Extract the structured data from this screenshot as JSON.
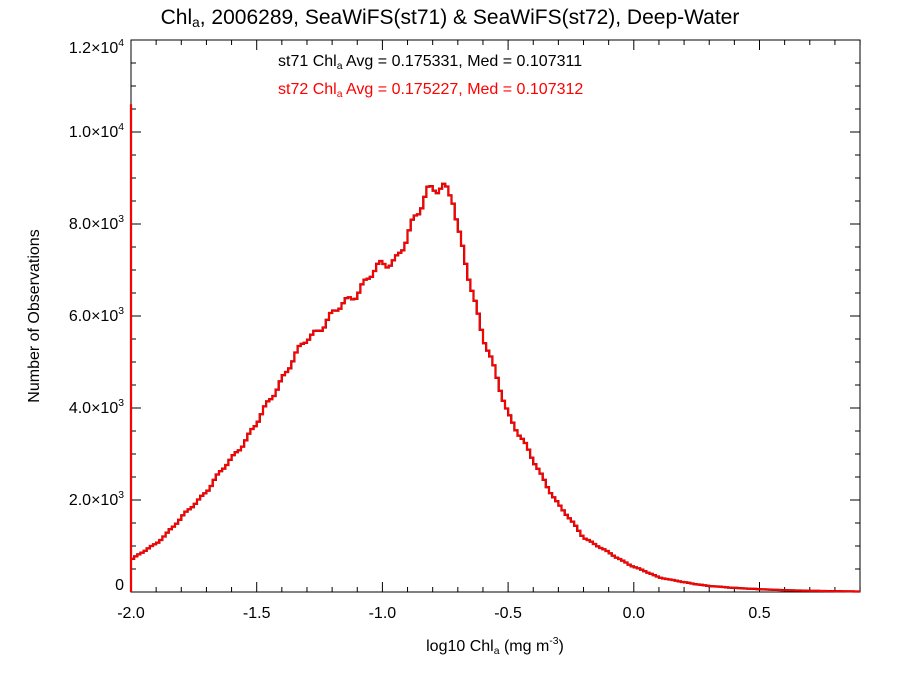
{
  "chart_data": {
    "type": "histogram",
    "title": {
      "prefix": "Chl",
      "prefix_sub": "a",
      "rest": ", 2006289, SeaWiFS(st71) & SeaWiFS(st72), Deep-Water"
    },
    "xlabel": {
      "pre": "log10 Chl",
      "sub": "a",
      "mid": " (mg m",
      "sup": "-3",
      "post": ")"
    },
    "ylabel": "Number of Observations",
    "xlim": [
      -2.0,
      0.9
    ],
    "ylim": [
      0,
      12000
    ],
    "x_ticks": [
      {
        "value": -2.0,
        "label": "-2.0"
      },
      {
        "value": -1.5,
        "label": "-1.5"
      },
      {
        "value": -1.0,
        "label": "-1.0"
      },
      {
        "value": -0.5,
        "label": "-0.5"
      },
      {
        "value": 0.0,
        "label": "0.0"
      },
      {
        "value": 0.5,
        "label": "0.5"
      }
    ],
    "y_ticks": [
      {
        "value": 0,
        "mant": "0",
        "exp": ""
      },
      {
        "value": 2000,
        "mant": "2.0×10",
        "exp": "3"
      },
      {
        "value": 4000,
        "mant": "4.0×10",
        "exp": "3"
      },
      {
        "value": 6000,
        "mant": "6.0×10",
        "exp": "3"
      },
      {
        "value": 8000,
        "mant": "8.0×10",
        "exp": "3"
      },
      {
        "value": 10000,
        "mant": "1.0×10",
        "exp": "4"
      },
      {
        "value": 12000,
        "mant": "1.2×10",
        "exp": "4"
      }
    ],
    "annotations": [
      {
        "pre": "st71 Chl",
        "sub": "a",
        "post": " Avg = 0.175331, Med = 0.107311",
        "color": "#000000"
      },
      {
        "pre": "st72 Chl",
        "sub": "a",
        "post": " Avg = 0.175227, Med = 0.107312",
        "color": "#ff0000"
      }
    ],
    "series": [
      {
        "name": "st71",
        "color": "#000000",
        "x": [
          -2.0,
          -1.9,
          -1.8,
          -1.7,
          -1.6,
          -1.5,
          -1.4,
          -1.3,
          -1.2,
          -1.1,
          -1.05,
          -1.0,
          -0.95,
          -0.9,
          -0.85,
          -0.82,
          -0.8,
          -0.75,
          -0.72,
          -0.7,
          -0.65,
          -0.6,
          -0.5,
          -0.4,
          -0.3,
          -0.2,
          -0.1,
          0.0,
          0.1,
          0.2,
          0.3,
          0.4,
          0.5,
          0.6,
          0.7,
          0.8,
          0.9
        ],
        "y": [
          700,
          1050,
          1600,
          2200,
          2900,
          3650,
          4650,
          5500,
          6000,
          6550,
          6850,
          7100,
          7250,
          7700,
          8300,
          8750,
          8900,
          8750,
          8500,
          7850,
          6800,
          5550,
          3900,
          2850,
          1900,
          1200,
          850,
          550,
          320,
          210,
          130,
          90,
          60,
          40,
          25,
          18,
          10
        ]
      },
      {
        "name": "st72",
        "color": "#ff0000",
        "x": [
          -2.0,
          -1.9,
          -1.8,
          -1.7,
          -1.6,
          -1.5,
          -1.4,
          -1.3,
          -1.2,
          -1.1,
          -1.05,
          -1.0,
          -0.95,
          -0.9,
          -0.85,
          -0.82,
          -0.8,
          -0.75,
          -0.72,
          -0.7,
          -0.65,
          -0.6,
          -0.5,
          -0.4,
          -0.3,
          -0.2,
          -0.1,
          0.0,
          0.1,
          0.2,
          0.3,
          0.4,
          0.5,
          0.6,
          0.7,
          0.8,
          0.9
        ],
        "y": [
          700,
          1050,
          1600,
          2200,
          2900,
          3650,
          4650,
          5500,
          6000,
          6550,
          6850,
          7100,
          7250,
          7700,
          8300,
          8750,
          8900,
          8750,
          8500,
          7850,
          6800,
          5550,
          3900,
          2850,
          1900,
          1200,
          850,
          550,
          320,
          210,
          130,
          90,
          60,
          40,
          25,
          18,
          10
        ]
      }
    ],
    "spike": {
      "x": -2.0,
      "y": 10600
    },
    "grid": false
  }
}
